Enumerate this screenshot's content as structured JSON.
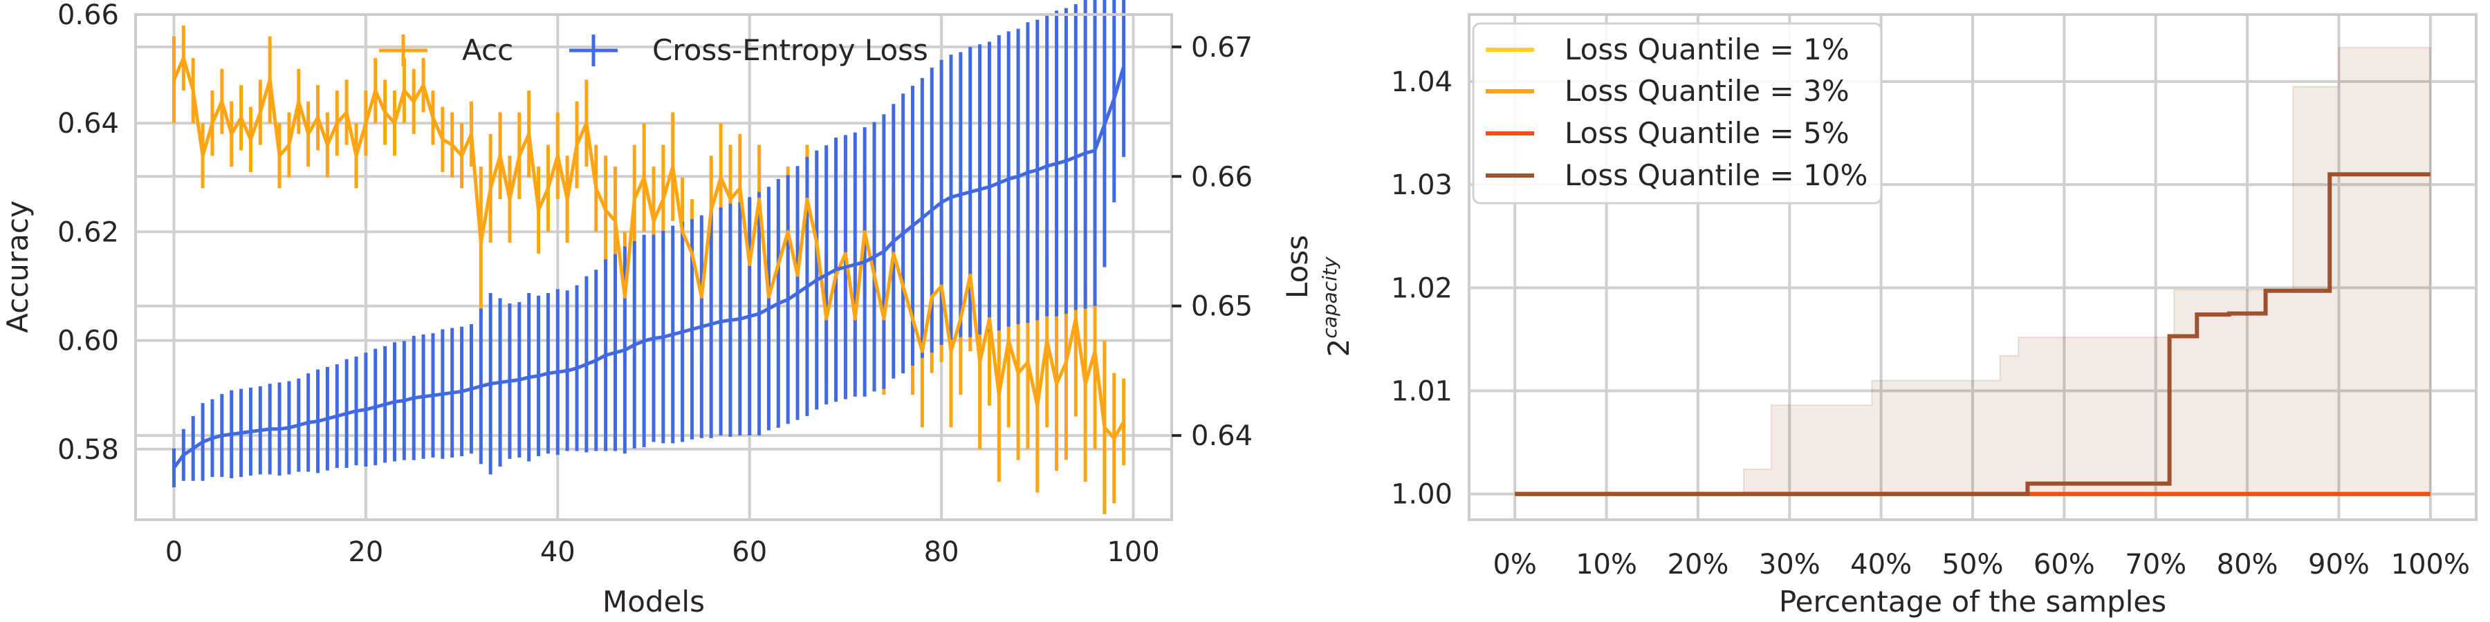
{
  "chart_data": [
    {
      "type": "line",
      "xlabel": "Models",
      "ylabel": "Accuracy",
      "ylabel_right": "Loss",
      "xlim": [
        -4,
        104
      ],
      "ylim": [
        0.567,
        0.66
      ],
      "ylim_right": [
        0.6335,
        0.6725
      ],
      "x_ticks": [
        "0",
        "20",
        "40",
        "60",
        "80",
        "100"
      ],
      "x_tick_values": [
        0,
        20,
        40,
        60,
        80,
        100
      ],
      "y_ticks": [
        "0.58",
        "0.60",
        "0.62",
        "0.64",
        "0.66"
      ],
      "y_tick_values": [
        0.58,
        0.6,
        0.62,
        0.64,
        0.66
      ],
      "y_ticks_right": [
        "0.64",
        "0.65",
        "0.66",
        "0.67"
      ],
      "y_tick_values_right": [
        0.64,
        0.65,
        0.66,
        0.67
      ],
      "grid": true,
      "legend_position": "top-center",
      "series": [
        {
          "name": "Acc",
          "axis": "left",
          "color": "#FFA514",
          "x": [
            0,
            1,
            2,
            3,
            4,
            5,
            6,
            7,
            8,
            9,
            10,
            11,
            12,
            13,
            14,
            15,
            16,
            17,
            18,
            19,
            20,
            21,
            22,
            23,
            24,
            25,
            26,
            27,
            28,
            29,
            30,
            31,
            32,
            33,
            34,
            35,
            36,
            37,
            38,
            39,
            40,
            41,
            42,
            43,
            44,
            45,
            46,
            47,
            48,
            49,
            50,
            51,
            52,
            53,
            54,
            55,
            56,
            57,
            58,
            59,
            60,
            61,
            62,
            63,
            64,
            65,
            66,
            67,
            68,
            69,
            70,
            71,
            72,
            73,
            74,
            75,
            76,
            77,
            78,
            79,
            80,
            81,
            82,
            83,
            84,
            85,
            86,
            87,
            88,
            89,
            90,
            91,
            92,
            93,
            94,
            95,
            96,
            97,
            98,
            99
          ],
          "values": [
            0.648,
            0.652,
            0.646,
            0.634,
            0.64,
            0.644,
            0.638,
            0.641,
            0.637,
            0.642,
            0.648,
            0.634,
            0.636,
            0.644,
            0.638,
            0.641,
            0.636,
            0.64,
            0.642,
            0.634,
            0.64,
            0.646,
            0.642,
            0.64,
            0.646,
            0.644,
            0.647,
            0.641,
            0.637,
            0.636,
            0.634,
            0.638,
            0.618,
            0.628,
            0.634,
            0.626,
            0.634,
            0.638,
            0.624,
            0.628,
            0.634,
            0.626,
            0.636,
            0.64,
            0.628,
            0.624,
            0.622,
            0.608,
            0.626,
            0.63,
            0.622,
            0.626,
            0.632,
            0.62,
            0.616,
            0.608,
            0.624,
            0.63,
            0.626,
            0.628,
            0.614,
            0.626,
            0.608,
            0.614,
            0.62,
            0.612,
            0.626,
            0.618,
            0.604,
            0.612,
            0.616,
            0.604,
            0.62,
            0.612,
            0.604,
            0.616,
            0.61,
            0.604,
            0.598,
            0.608,
            0.61,
            0.598,
            0.604,
            0.612,
            0.596,
            0.604,
            0.59,
            0.6,
            0.594,
            0.596,
            0.588,
            0.6,
            0.592,
            0.596,
            0.604,
            0.592,
            0.598,
            0.584,
            0.582,
            0.585
          ],
          "errors": [
            0.008,
            0.006,
            0.006,
            0.006,
            0.006,
            0.006,
            0.006,
            0.006,
            0.006,
            0.006,
            0.008,
            0.006,
            0.006,
            0.006,
            0.006,
            0.006,
            0.006,
            0.006,
            0.006,
            0.006,
            0.006,
            0.006,
            0.006,
            0.006,
            0.006,
            0.006,
            0.005,
            0.005,
            0.006,
            0.006,
            0.006,
            0.006,
            0.014,
            0.01,
            0.008,
            0.008,
            0.008,
            0.008,
            0.008,
            0.008,
            0.008,
            0.008,
            0.008,
            0.008,
            0.008,
            0.01,
            0.01,
            0.012,
            0.01,
            0.01,
            0.01,
            0.01,
            0.01,
            0.01,
            0.01,
            0.012,
            0.01,
            0.01,
            0.01,
            0.01,
            0.012,
            0.01,
            0.012,
            0.012,
            0.012,
            0.012,
            0.01,
            0.012,
            0.012,
            0.012,
            0.012,
            0.012,
            0.012,
            0.012,
            0.014,
            0.012,
            0.014,
            0.014,
            0.014,
            0.014,
            0.014,
            0.014,
            0.014,
            0.014,
            0.016,
            0.016,
            0.016,
            0.016,
            0.016,
            0.016,
            0.016,
            0.016,
            0.016,
            0.018,
            0.018,
            0.018,
            0.018,
            0.016,
            0.012,
            0.008
          ]
        },
        {
          "name": "Cross-Entropy Loss",
          "axis": "right",
          "color": "#4169E1",
          "x": [
            0,
            1,
            2,
            3,
            4,
            5,
            6,
            7,
            8,
            9,
            10,
            11,
            12,
            13,
            14,
            15,
            16,
            17,
            18,
            19,
            20,
            21,
            22,
            23,
            24,
            25,
            26,
            27,
            28,
            29,
            30,
            31,
            32,
            33,
            34,
            35,
            36,
            37,
            38,
            39,
            40,
            41,
            42,
            43,
            44,
            45,
            46,
            47,
            48,
            49,
            50,
            51,
            52,
            53,
            54,
            55,
            56,
            57,
            58,
            59,
            60,
            61,
            62,
            63,
            64,
            65,
            66,
            67,
            68,
            69,
            70,
            71,
            72,
            73,
            74,
            75,
            76,
            77,
            78,
            79,
            80,
            81,
            82,
            83,
            84,
            85,
            86,
            87,
            88,
            89,
            90,
            91,
            92,
            93,
            94,
            95,
            96,
            97,
            98,
            99
          ],
          "values": [
            0.6375,
            0.6385,
            0.639,
            0.6395,
            0.6398,
            0.64,
            0.6401,
            0.6402,
            0.6403,
            0.6404,
            0.6405,
            0.6405,
            0.6406,
            0.6408,
            0.641,
            0.6411,
            0.6413,
            0.6415,
            0.6417,
            0.6419,
            0.642,
            0.6422,
            0.6424,
            0.6426,
            0.6427,
            0.6429,
            0.643,
            0.6431,
            0.6432,
            0.6433,
            0.6434,
            0.6436,
            0.6438,
            0.644,
            0.6441,
            0.6442,
            0.6443,
            0.6445,
            0.6446,
            0.6448,
            0.6449,
            0.645,
            0.6452,
            0.6455,
            0.6458,
            0.6462,
            0.6464,
            0.6466,
            0.647,
            0.6473,
            0.6475,
            0.6476,
            0.6478,
            0.648,
            0.6482,
            0.6484,
            0.6486,
            0.6488,
            0.6489,
            0.649,
            0.6492,
            0.6494,
            0.6498,
            0.6502,
            0.6505,
            0.651,
            0.6515,
            0.652,
            0.6524,
            0.6528,
            0.653,
            0.6532,
            0.6534,
            0.6538,
            0.6542,
            0.655,
            0.6556,
            0.6562,
            0.6568,
            0.6574,
            0.658,
            0.6584,
            0.6586,
            0.6588,
            0.659,
            0.6592,
            0.6595,
            0.6598,
            0.66,
            0.6603,
            0.6605,
            0.6608,
            0.661,
            0.6612,
            0.6615,
            0.6618,
            0.662,
            0.664,
            0.666,
            0.6685
          ],
          "errors": [
            0.0015,
            0.002,
            0.0025,
            0.003,
            0.003,
            0.0032,
            0.0034,
            0.0034,
            0.0034,
            0.0034,
            0.0035,
            0.0036,
            0.0036,
            0.0036,
            0.0038,
            0.004,
            0.004,
            0.004,
            0.0042,
            0.0042,
            0.0044,
            0.0045,
            0.0045,
            0.0046,
            0.0046,
            0.0048,
            0.0048,
            0.0048,
            0.005,
            0.005,
            0.005,
            0.005,
            0.006,
            0.007,
            0.0065,
            0.006,
            0.006,
            0.0065,
            0.0062,
            0.0062,
            0.0064,
            0.0062,
            0.0064,
            0.0068,
            0.007,
            0.0074,
            0.0076,
            0.008,
            0.008,
            0.0082,
            0.008,
            0.0082,
            0.0084,
            0.0085,
            0.0085,
            0.0086,
            0.0088,
            0.0088,
            0.009,
            0.009,
            0.0092,
            0.0094,
            0.0094,
            0.0096,
            0.0096,
            0.0098,
            0.01,
            0.01,
            0.01,
            0.0102,
            0.0102,
            0.0102,
            0.0104,
            0.0104,
            0.0106,
            0.0106,
            0.0108,
            0.0108,
            0.0108,
            0.011,
            0.011,
            0.011,
            0.011,
            0.0112,
            0.0112,
            0.0112,
            0.0114,
            0.0114,
            0.0114,
            0.0116,
            0.0116,
            0.0116,
            0.0118,
            0.0118,
            0.0118,
            0.012,
            0.012,
            0.011,
            0.008,
            0.007
          ]
        }
      ]
    },
    {
      "type": "line",
      "xlabel": "Percentage of the samples",
      "ylabel": "2^capacity",
      "ylabel_base": "2",
      "ylabel_exponent": "capacity",
      "xlim": [
        -5,
        105
      ],
      "ylim": [
        0.9975,
        1.0465
      ],
      "x_ticks": [
        "0%",
        "10%",
        "20%",
        "30%",
        "40%",
        "50%",
        "60%",
        "70%",
        "80%",
        "90%",
        "100%"
      ],
      "x_tick_values": [
        0,
        10,
        20,
        30,
        40,
        50,
        60,
        70,
        80,
        90,
        100
      ],
      "y_ticks": [
        "1.00",
        "1.01",
        "1.02",
        "1.03",
        "1.04"
      ],
      "y_tick_values": [
        1.0,
        1.01,
        1.02,
        1.03,
        1.04
      ],
      "grid": true,
      "legend_position": "top-left",
      "band": {
        "color": "#A0522D",
        "opacity": 0.12,
        "x": [
          0,
          3,
          6,
          10,
          14,
          18,
          21,
          25,
          28,
          34,
          39,
          45,
          50,
          53,
          55,
          60,
          65,
          70,
          72,
          75,
          78,
          80,
          85,
          88,
          90,
          100
        ],
        "lower": [
          1.0,
          1.0,
          1.0,
          1.0,
          1.0,
          1.0,
          1.0,
          1.0,
          1.0,
          1.0,
          1.0,
          1.0,
          1.0,
          1.0,
          1.0,
          1.0,
          1.0,
          1.0,
          1.0,
          1.0,
          1.0,
          1.0,
          1.0,
          1.0,
          1.0,
          1.0
        ],
        "upper": [
          1.0,
          1.0,
          1.0,
          1.0,
          1.0,
          1.0,
          1.0,
          1.0024,
          1.0086,
          1.0086,
          1.011,
          1.011,
          1.011,
          1.0134,
          1.0152,
          1.0152,
          1.0152,
          1.0152,
          1.0198,
          1.0198,
          1.0198,
          1.0198,
          1.0395,
          1.0395,
          1.0433,
          1.0433
        ]
      },
      "series": [
        {
          "name": "Loss Quantile = 1%",
          "color": "#FFD21E",
          "step": "post",
          "x": [
            0,
            100
          ],
          "values": [
            1.0,
            1.0
          ]
        },
        {
          "name": "Loss Quantile = 3%",
          "color": "#FFA01E",
          "step": "post",
          "x": [
            0,
            100
          ],
          "values": [
            1.0,
            1.0
          ]
        },
        {
          "name": "Loss Quantile = 5%",
          "color": "#F05014",
          "step": "post",
          "x": [
            0,
            100
          ],
          "values": [
            1.0,
            1.0
          ]
        },
        {
          "name": "Loss Quantile = 10%",
          "color": "#A0522D",
          "step": "post",
          "x": [
            0,
            56,
            71.5,
            74.5,
            78,
            82,
            89,
            100
          ],
          "values": [
            1.0,
            1.001,
            1.0153,
            1.0174,
            1.0175,
            1.0197,
            1.031,
            1.031
          ]
        }
      ]
    }
  ]
}
